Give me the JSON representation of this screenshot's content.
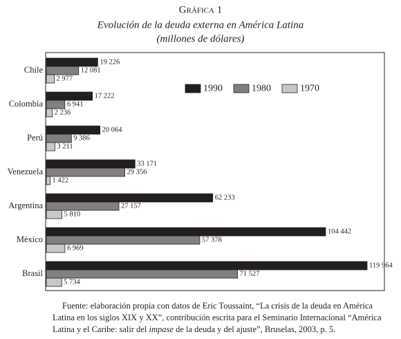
{
  "chart_data": {
    "type": "hbar",
    "title": "Gráfica 1",
    "subtitle": [
      "Evolución de la deuda externa en América Latina",
      "(millones de dólares)"
    ],
    "categories": [
      "Chile",
      "Colombia",
      "Perú",
      "Venezuela",
      "Argentina",
      "México",
      "Brasil"
    ],
    "series": [
      {
        "name": "1990",
        "color": "#231f20",
        "values": [
          19226,
          17222,
          20064,
          33171,
          62233,
          104442,
          119964
        ],
        "value_labels": [
          "19 226",
          "17 222",
          "20 064",
          "33 171",
          "62 233",
          "104 442",
          "119 964"
        ]
      },
      {
        "name": "1980",
        "color": "#808080",
        "values": [
          12081,
          6941,
          9386,
          29356,
          27157,
          57378,
          71527
        ],
        "value_labels": [
          "12 081",
          "6 941",
          "9 386",
          "29 356",
          "27 157",
          "57 378",
          "71 527"
        ]
      },
      {
        "name": "1970",
        "color": "#c8c8c8",
        "values": [
          2977,
          2236,
          3211,
          1422,
          5810,
          6969,
          5734
        ],
        "value_labels": [
          "2 977",
          "2 236",
          "3 211",
          "1 422",
          "5 810",
          "6 969",
          "5 734"
        ]
      }
    ],
    "legend": "top-right",
    "source": [
      "Fuente: elaboración propia con datos de Eric Toussaint, “La crisis de la deuda en América Latina en los siglos XIX y XX”, contribución escrita para el Seminario Internacional “América Latina y el Caribe: salir del ",
      "impase",
      " de la deuda y del ajuste”, Bruselas, 2003, p. 5."
    ]
  }
}
